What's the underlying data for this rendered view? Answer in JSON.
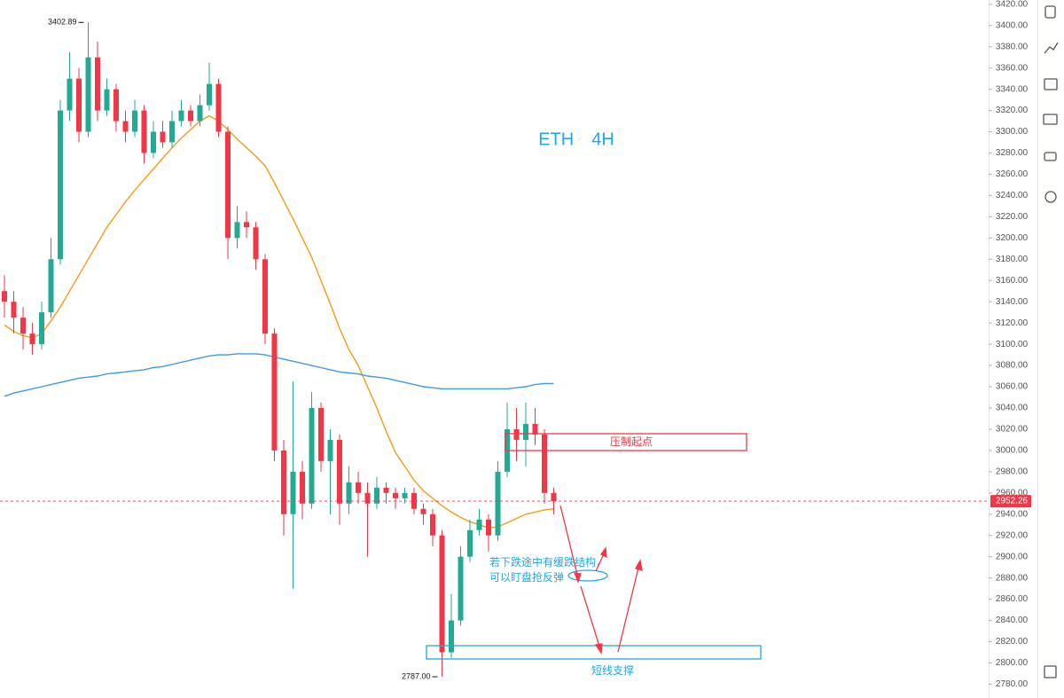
{
  "chart_data": {
    "type": "candlestick",
    "title": "ETH　4H",
    "open": [
      3150,
      3140,
      3125,
      3110,
      3100,
      3130,
      3180,
      3320,
      3350,
      3300,
      3370,
      3320,
      3340,
      3310,
      3300,
      3320,
      3280,
      3300,
      3290,
      3310,
      3320,
      3310,
      3325,
      3345,
      3300,
      3200,
      3215,
      3210,
      3180,
      3110,
      3000,
      2940,
      2980,
      2950,
      3040,
      2990,
      3010,
      2950,
      2970,
      2960,
      2950,
      2965,
      2960,
      2955,
      2960,
      2945,
      2940,
      2920,
      2810,
      2840,
      2900,
      2925,
      2935,
      2920,
      2980,
      3020,
      3010,
      3025,
      3015,
      2960
    ],
    "high": [
      3165,
      3150,
      3135,
      3120,
      3140,
      3200,
      3330,
      3375,
      3360,
      3402.89,
      3385,
      3350,
      3345,
      3320,
      3330,
      3325,
      3310,
      3310,
      3320,
      3330,
      3325,
      3335,
      3365,
      3350,
      3305,
      3230,
      3225,
      3215,
      3185,
      3115,
      3010,
      3065,
      2990,
      3055,
      3045,
      3020,
      3015,
      2985,
      2980,
      2970,
      2975,
      2970,
      2965,
      2965,
      2965,
      2950,
      2945,
      2925,
      2865,
      2910,
      2935,
      2945,
      2940,
      2990,
      3045,
      3040,
      3045,
      3040,
      3020,
      2965
    ],
    "low": [
      3125,
      3110,
      3095,
      3090,
      3095,
      3125,
      3175,
      3310,
      3290,
      3295,
      3310,
      3315,
      3300,
      3290,
      3295,
      3270,
      3275,
      3285,
      3285,
      3305,
      3305,
      3305,
      3320,
      3295,
      3180,
      3190,
      3200,
      3170,
      3100,
      2990,
      2920,
      2870,
      2935,
      2945,
      2980,
      2940,
      2930,
      2940,
      2950,
      2900,
      2945,
      2950,
      2945,
      2950,
      2940,
      2930,
      2910,
      2787,
      2805,
      2835,
      2895,
      2920,
      2905,
      2915,
      2975,
      2990,
      2985,
      3005,
      2950,
      2940
    ],
    "close": [
      3140,
      3125,
      3110,
      3100,
      3130,
      3180,
      3320,
      3350,
      3300,
      3370,
      3320,
      3340,
      3310,
      3300,
      3320,
      3280,
      3300,
      3290,
      3310,
      3320,
      3310,
      3325,
      3345,
      3300,
      3200,
      3215,
      3210,
      3180,
      3110,
      3000,
      2940,
      2980,
      2950,
      3040,
      2990,
      3010,
      2950,
      2970,
      2960,
      2950,
      2965,
      2960,
      2955,
      2960,
      2945,
      2940,
      2920,
      2810,
      2840,
      2900,
      2925,
      2935,
      2920,
      2980,
      3020,
      3010,
      3025,
      3015,
      2960,
      2952.26
    ],
    "up_color": "#22ab94",
    "down_color": "#f23645",
    "moving_averages": [
      {
        "color": "#f39c12",
        "values": [
          3118,
          3112,
          3108,
          3106,
          3110,
          3122,
          3135,
          3150,
          3165,
          3180,
          3195,
          3210,
          3222,
          3234,
          3245,
          3255,
          3265,
          3275,
          3285,
          3294,
          3302,
          3310,
          3315,
          3310,
          3302,
          3293,
          3285,
          3277,
          3268,
          3252,
          3235,
          3218,
          3200,
          3182,
          3160,
          3138,
          3115,
          3095,
          3080,
          3060,
          3040,
          3018,
          2998,
          2985,
          2972,
          2962,
          2955,
          2948,
          2942,
          2937,
          2933,
          2930,
          2927,
          2928,
          2932,
          2936,
          2940,
          2942,
          2944,
          2945
        ]
      },
      {
        "color": "#3d9be9",
        "values": [
          3051,
          3054,
          3056,
          3058,
          3060,
          3062,
          3064,
          3066,
          3068,
          3069,
          3070,
          3072,
          3073,
          3074,
          3075,
          3076,
          3078,
          3079,
          3081,
          3083,
          3085,
          3087,
          3089,
          3090,
          3090,
          3091,
          3091,
          3091,
          3090,
          3088,
          3086,
          3084,
          3082,
          3080,
          3078,
          3076,
          3074,
          3073,
          3072,
          3070,
          3069,
          3068,
          3066,
          3064,
          3062,
          3060,
          3059,
          3058,
          3058,
          3058,
          3058,
          3058,
          3058,
          3058,
          3058,
          3059,
          3060,
          3062,
          3063,
          3063
        ]
      }
    ],
    "extremes": [
      {
        "value": 3402.89,
        "label": "3402.89"
      },
      {
        "value": 2787,
        "label": "2787.00"
      }
    ],
    "annotations": {
      "resistance": "压制起点",
      "note": [
        "若下跌途中有缓跌结构，",
        "可以盯盘抢反弹"
      ],
      "support": "短线支撑"
    },
    "ylim": [
      2767,
      3424
    ],
    "yticks": [
      {
        "value": 2780,
        "label": "2780.00"
      },
      {
        "value": 2800,
        "label": "2800.00"
      },
      {
        "value": 2820,
        "label": "2820.00"
      },
      {
        "value": 2840,
        "label": "2840.00"
      },
      {
        "value": 2860,
        "label": "2860.00"
      },
      {
        "value": 2880,
        "label": "2880.00"
      },
      {
        "value": 2900,
        "label": "2900.00"
      },
      {
        "value": 2920,
        "label": "2920.00"
      },
      {
        "value": 2940,
        "label": "2940.00"
      },
      {
        "value": 2960,
        "label": "2960.00"
      },
      {
        "value": 2980,
        "label": "2980.00"
      },
      {
        "value": 3000,
        "label": "3000.00"
      },
      {
        "value": 3020,
        "label": "3020.00"
      },
      {
        "value": 3040,
        "label": "3040.00"
      },
      {
        "value": 3060,
        "label": "3060.00"
      },
      {
        "value": 3080,
        "label": "3080.00"
      },
      {
        "value": 3100,
        "label": "3100.00"
      },
      {
        "value": 3120,
        "label": "3120.00"
      },
      {
        "value": 3140,
        "label": "3140.00"
      },
      {
        "value": 3160,
        "label": "3160.00"
      },
      {
        "value": 3180,
        "label": "3180.00"
      },
      {
        "value": 3200,
        "label": "3200.00"
      },
      {
        "value": 3220,
        "label": "3220.00"
      },
      {
        "value": 3240,
        "label": "3240.00"
      },
      {
        "value": 3260,
        "label": "3260.00"
      },
      {
        "value": 3280,
        "label": "3280.00"
      },
      {
        "value": 3300,
        "label": "3300.00"
      },
      {
        "value": 3320,
        "label": "3320.00"
      },
      {
        "value": 3340,
        "label": "3340.00"
      },
      {
        "value": 3360,
        "label": "3360.00"
      },
      {
        "value": 3380,
        "label": "3380.00"
      },
      {
        "value": 3400,
        "label": "3400.00"
      },
      {
        "value": 3420,
        "label": "3420.00"
      }
    ]
  }
}
